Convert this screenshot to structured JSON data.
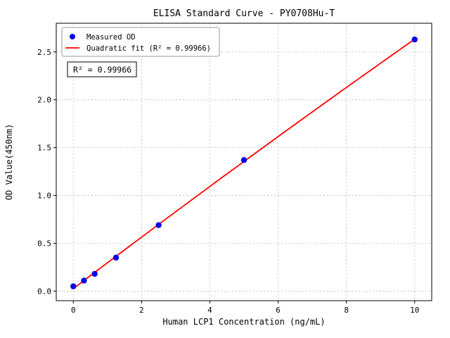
{
  "chart_data": {
    "type": "scatter",
    "title": "ELISA Standard Curve - PY0708Hu-T",
    "xlabel": "Human LCP1 Concentration (ng/mL)",
    "ylabel": "OD Value(450nm)",
    "xlim": [
      -0.5,
      10.5
    ],
    "ylim": [
      -0.1,
      2.8
    ],
    "xticks": [
      0,
      2,
      4,
      6,
      8,
      10
    ],
    "yticks": [
      0.0,
      0.5,
      1.0,
      1.5,
      2.0,
      2.5
    ],
    "grid": true,
    "legend_position": "upper left",
    "annotation": "R² = 0.99966",
    "series": [
      {
        "name": "Measured OD",
        "type": "scatter",
        "marker": "circle",
        "color": "#0000ee",
        "x": [
          0,
          0.3125,
          0.625,
          1.25,
          2.5,
          5,
          10
        ],
        "y": [
          0.05,
          0.11,
          0.18,
          0.35,
          0.69,
          1.37,
          2.63
        ]
      },
      {
        "name": "Quadratic fit (R² = 0.99966)",
        "type": "line",
        "color": "#ff0000",
        "fit": "quadratic",
        "x_range": [
          0,
          10
        ]
      }
    ]
  }
}
